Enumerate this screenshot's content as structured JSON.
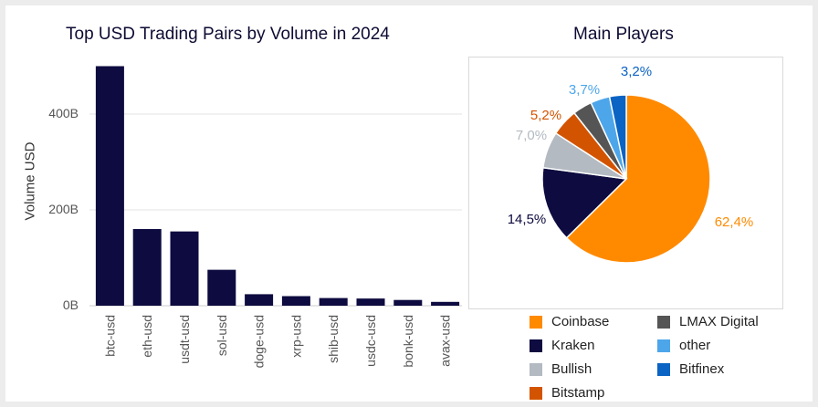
{
  "chart_data": [
    {
      "type": "bar",
      "title": "Top USD Trading Pairs by Volume in 2024",
      "ylabel": "Volume USD",
      "xlabel": "",
      "categories": [
        "btc-usd",
        "eth-usd",
        "usdt-usd",
        "sol-usd",
        "doge-usd",
        "xrp-usd",
        "shib-usd",
        "usdc-usd",
        "bonk-usd",
        "avax-usd"
      ],
      "values": [
        500000000000,
        160000000000,
        155000000000,
        75000000000,
        24000000000,
        20000000000,
        16000000000,
        15000000000,
        12000000000,
        8000000000
      ],
      "yticks": [
        "0B",
        "200B",
        "400B"
      ],
      "ytick_values": [
        0,
        200000000000,
        400000000000
      ],
      "ylim": [
        0,
        520000000000
      ],
      "grid": true,
      "color": "#0d0b3f"
    },
    {
      "type": "pie",
      "title": "Main Players",
      "slices": [
        {
          "name": "Coinbase",
          "value": 62.4,
          "label": "62,4%",
          "color": "#ff8a00"
        },
        {
          "name": "Kraken",
          "value": 14.5,
          "label": "14,5%",
          "color": "#0d0b3f"
        },
        {
          "name": "Bullish",
          "value": 7.0,
          "label": "7,0%",
          "color": "#b3bac1"
        },
        {
          "name": "Bitstamp",
          "value": 5.2,
          "label": "5,2%",
          "color": "#d35400"
        },
        {
          "name": "LMAX Digital",
          "value": 3.7,
          "label": "",
          "color": "#555555"
        },
        {
          "name": "other",
          "value": 3.7,
          "label": "3,7%",
          "color": "#4da6ea"
        },
        {
          "name": "Bitfinex",
          "value": 3.2,
          "label": "3,2%",
          "color": "#0b63c4"
        }
      ],
      "legend": [
        {
          "name": "Coinbase",
          "color": "#ff8a00"
        },
        {
          "name": "LMAX Digital",
          "color": "#555555"
        },
        {
          "name": "Kraken",
          "color": "#0d0b3f"
        },
        {
          "name": "other",
          "color": "#4da6ea"
        },
        {
          "name": "Bullish",
          "color": "#b3bac1"
        },
        {
          "name": "Bitfinex",
          "color": "#0b63c4"
        },
        {
          "name": "Bitstamp",
          "color": "#d35400"
        }
      ],
      "legend_placement": "bottom"
    }
  ]
}
